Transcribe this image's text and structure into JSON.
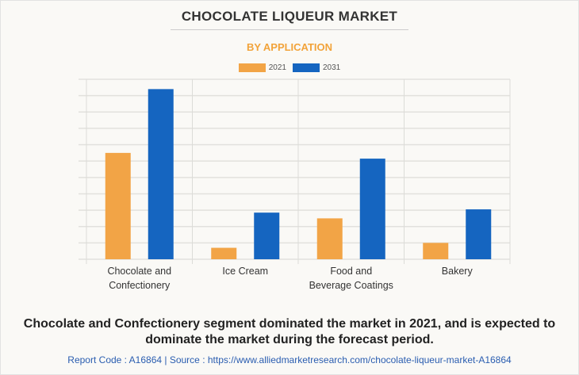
{
  "chart_data": {
    "type": "bar",
    "title": "CHOCOLATE LIQUEUR MARKET",
    "subtitle": "BY APPLICATION",
    "categories": [
      [
        "Chocolate and",
        "Confectionery"
      ],
      [
        "Ice Cream"
      ],
      [
        "Food and",
        "Beverage Coatings"
      ],
      [
        "Bakery"
      ]
    ],
    "series": [
      {
        "name": "2021",
        "color": "#f2a446",
        "values": [
          6.5,
          0.7,
          2.5,
          1.0
        ]
      },
      {
        "name": "2031",
        "color": "#1565c0",
        "values": [
          10.4,
          2.85,
          6.15,
          3.05
        ]
      }
    ],
    "ylim": [
      0,
      11
    ],
    "grid": true,
    "y_ticks_shown": false,
    "legend": "top-center",
    "xlabel": "",
    "ylabel": ""
  },
  "footer": {
    "summary": "Chocolate and Confectionery segment dominated the market in 2021, and is expected to dominate the market during the forecast period.",
    "source": "Report Code : A16864  |  Source : https://www.alliedmarketresearch.com/chocolate-liqueur-market-A16864"
  }
}
